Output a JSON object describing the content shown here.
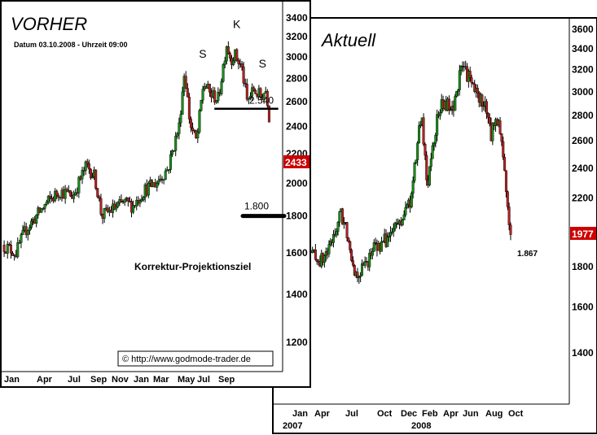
{
  "chart_data": [
    {
      "type": "candlestick",
      "title": "VORHER",
      "subtitle": "Datum 03.10.2008 - Uhrzeit 09:00",
      "yticks": [
        3400,
        3200,
        3000,
        2800,
        2600,
        2400,
        2200,
        2000,
        1800,
        1600,
        1400,
        1200
      ],
      "ylim": [
        1100,
        3460
      ],
      "xticks": [
        "Jan",
        "Apr",
        "Jul",
        "Sep",
        "Nov",
        "Jan",
        "Mar",
        "May",
        "Jul",
        "Sep"
      ],
      "xrange": [
        0,
        20.5
      ],
      "last_price": "2433",
      "last_price_value": 2433,
      "neckline": {
        "label": "2.540",
        "value": 2540,
        "x_start": 15.6,
        "x_end": 20.3
      },
      "target": {
        "label": "1.800",
        "value": 1800,
        "text": "Korrektur-Projektionsziel"
      },
      "pattern_labels": [
        {
          "text": "S",
          "x": 14.7,
          "y": 2990
        },
        {
          "text": "K",
          "x": 17.2,
          "y": 3290
        },
        {
          "text": "S",
          "x": 19.1,
          "y": 2900
        }
      ],
      "copyright": "© http://www.godmode-trader.de",
      "colors": {
        "up": "#1a8c1a",
        "down": "#b22222",
        "last_price_bg": "#cc0000"
      },
      "path_keypoints": [
        [
          0,
          1640
        ],
        [
          1,
          1600
        ],
        [
          1.7,
          1720
        ],
        [
          2.5,
          1800
        ],
        [
          3.3,
          1880
        ],
        [
          4.2,
          1950
        ],
        [
          5.2,
          1920
        ],
        [
          6.2,
          2120
        ],
        [
          6.8,
          2040
        ],
        [
          7.3,
          1800
        ],
        [
          8.1,
          1840
        ],
        [
          9,
          1880
        ],
        [
          9.6,
          1860
        ],
        [
          10.5,
          1960
        ],
        [
          11.3,
          2000
        ],
        [
          12.2,
          2100
        ],
        [
          13,
          2400
        ],
        [
          13.4,
          2870
        ],
        [
          13.8,
          2420
        ],
        [
          14.3,
          2280
        ],
        [
          14.8,
          2760
        ],
        [
          15.3,
          2660
        ],
        [
          15.9,
          2620
        ],
        [
          16.5,
          3130
        ],
        [
          16.8,
          2980
        ],
        [
          17.1,
          3020
        ],
        [
          17.6,
          2900
        ],
        [
          18,
          2600
        ],
        [
          18.5,
          2700
        ],
        [
          19,
          2640
        ],
        [
          19.4,
          2700
        ],
        [
          19.7,
          2433
        ]
      ]
    },
    {
      "type": "candlestick",
      "title": "Aktuell",
      "yticks": [
        3600,
        3400,
        3200,
        3000,
        2800,
        2600,
        2400,
        2200,
        2000,
        1800,
        1600,
        1400
      ],
      "ylim": [
        1280,
        3680
      ],
      "xticks": [
        "Jan",
        "Apr",
        "Jul",
        "Oct",
        "Dec",
        "Feb",
        "Apr",
        "Jun",
        "Aug",
        "Oct"
      ],
      "year_labels": [
        "2007",
        "2008"
      ],
      "xrange": [
        0,
        21.5
      ],
      "last_price": "1977",
      "last_price_value": 1977,
      "low_label": {
        "text": "1.867",
        "value": 1867
      },
      "colors": {
        "up": "#1a8c1a",
        "down": "#b22222",
        "last_price_bg": "#cc0000"
      },
      "path_keypoints": [
        [
          0,
          1880
        ],
        [
          1,
          1830
        ],
        [
          1.7,
          1900
        ],
        [
          2.6,
          2100
        ],
        [
          3.2,
          1980
        ],
        [
          3.8,
          1760
        ],
        [
          4.6,
          1800
        ],
        [
          5.3,
          1900
        ],
        [
          6,
          1920
        ],
        [
          7,
          2000
        ],
        [
          7.8,
          2080
        ],
        [
          8.5,
          2200
        ],
        [
          9.3,
          2800
        ],
        [
          9.8,
          2280
        ],
        [
          10.3,
          2600
        ],
        [
          10.8,
          2850
        ],
        [
          11.3,
          2900
        ],
        [
          11.9,
          2820
        ],
        [
          12.3,
          3050
        ],
        [
          12.8,
          3240
        ],
        [
          13.3,
          3110
        ],
        [
          14,
          2960
        ],
        [
          14.6,
          2900
        ],
        [
          15.1,
          2650
        ],
        [
          15.6,
          2800
        ],
        [
          16.1,
          2520
        ],
        [
          16.5,
          2140
        ],
        [
          16.8,
          1900
        ]
      ]
    }
  ]
}
